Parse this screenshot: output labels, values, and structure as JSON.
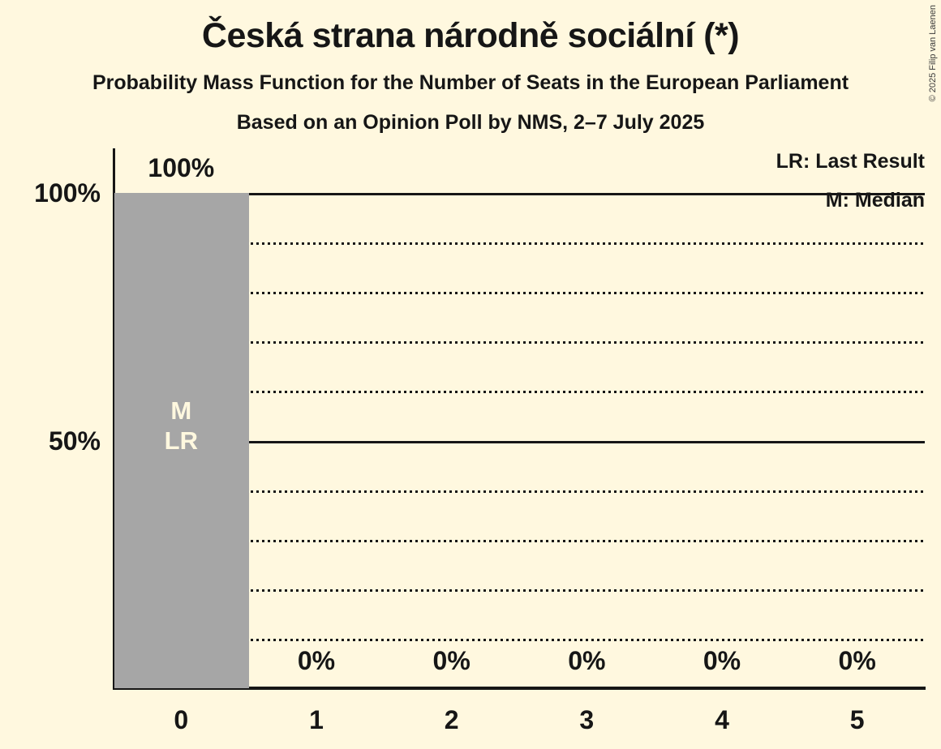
{
  "copyright": "© 2025 Filip van Laenen",
  "header": {
    "title": "Česká strana národně sociální (*)",
    "subtitle": "Probability Mass Function for the Number of Seats in the European Parliament",
    "caption": "Based on an Opinion Poll by NMS, 2–7 July 2025"
  },
  "legend": {
    "items": [
      {
        "label": "LR: Last Result"
      },
      {
        "label": "M: Median"
      }
    ]
  },
  "colors": {
    "background": "#FFF8DF",
    "bar": "#A6A6A6",
    "bar_label": "#FFF8DF",
    "text": "#161616"
  },
  "chart_data": {
    "type": "bar",
    "title": "Česká strana národně sociální (*)",
    "subtitle": "Probability Mass Function for the Number of Seats in the European Parliament",
    "caption": "Based on an Opinion Poll by NMS, 2–7 July 2025",
    "categories": [
      "0",
      "1",
      "2",
      "3",
      "4",
      "5"
    ],
    "values": [
      100,
      0,
      0,
      0,
      0,
      0
    ],
    "value_labels": [
      "100%",
      "0%",
      "0%",
      "0%",
      "0%",
      "0%"
    ],
    "annotations": [
      [
        "M",
        "LR"
      ],
      [],
      [],
      [],
      [],
      []
    ],
    "xlabel": "",
    "ylabel": "",
    "ylim": [
      0,
      100
    ],
    "y_ticks": [
      {
        "value": 100,
        "label": "100%"
      },
      {
        "value": 50,
        "label": "50%"
      }
    ],
    "gridlines": {
      "solid": [
        50,
        100
      ],
      "dotted": [
        10,
        20,
        30,
        40,
        60,
        70,
        80,
        90
      ]
    },
    "grid": true,
    "legend_position": "top-right",
    "legend_entries": [
      "LR: Last Result",
      "M: Median"
    ]
  }
}
